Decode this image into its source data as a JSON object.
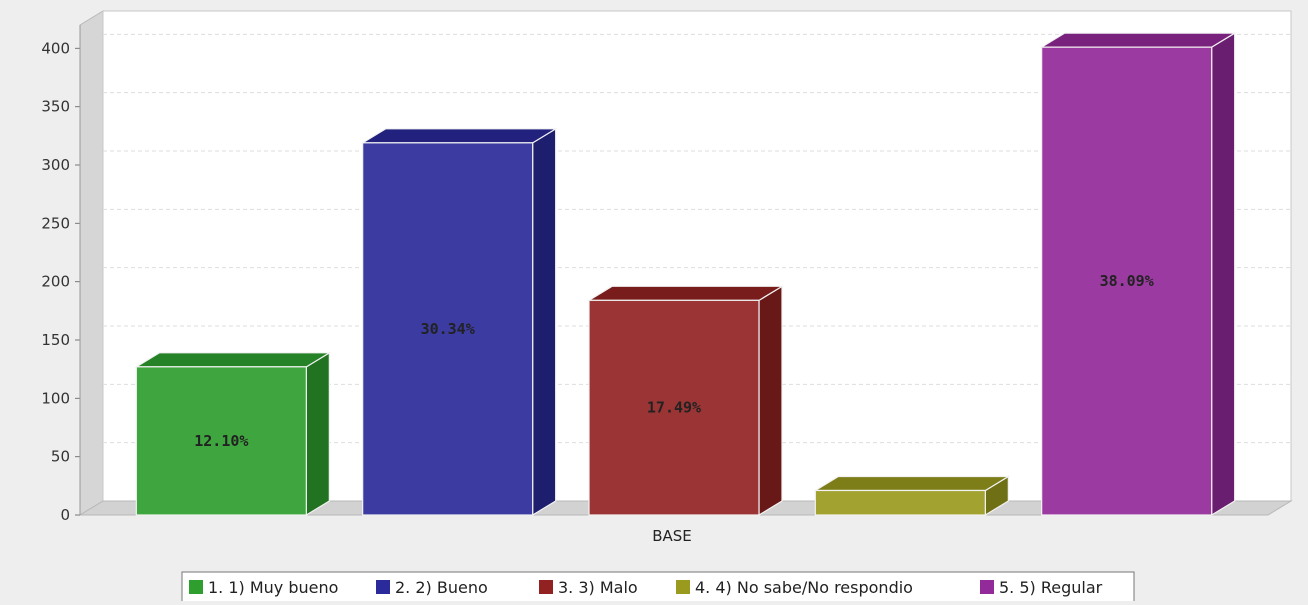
{
  "chart_data": {
    "type": "bar",
    "x_axis_category": "BASE",
    "series": [
      {
        "name": "1. 1) Muy bueno",
        "value": 127,
        "label": "12.10%",
        "color": "#2e9e2e"
      },
      {
        "name": "2. 2) Bueno",
        "value": 319,
        "label": "30.34%",
        "color": "#2a2a9a"
      },
      {
        "name": "3. 3) Malo",
        "value": 184,
        "label": "17.49%",
        "color": "#922222"
      },
      {
        "name": "4. 4) No sabe/No respondio",
        "value": 21,
        "label": "",
        "color": "#9a9a1e"
      },
      {
        "name": "5. 5) Regular",
        "value": 401,
        "label": "38.09%",
        "color": "#922a9a"
      }
    ],
    "y_ticks": [
      "0",
      "50",
      "100",
      "150",
      "200",
      "250",
      "300",
      "350",
      "400"
    ],
    "ylim": [
      0,
      420
    ],
    "grid": true,
    "legend_position": "bottom",
    "style": "3d-bar"
  }
}
